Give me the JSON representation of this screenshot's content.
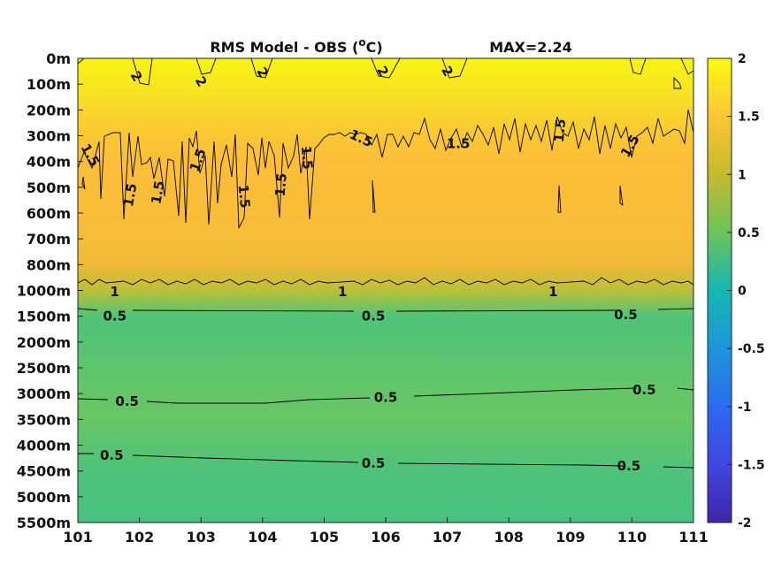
{
  "chart_data": {
    "type": "heatmap",
    "title": "RMS Model - OBS (",
    "title_unit": "C)",
    "title_super": "o",
    "max_label": "MAX=2.24",
    "xlabel": "",
    "ylabel": "",
    "x_ticks": [
      "101",
      "102",
      "103",
      "104",
      "105",
      "106",
      "107",
      "108",
      "109",
      "110",
      "111"
    ],
    "xlim": [
      101,
      111
    ],
    "y_ticks": [
      "0m",
      "100m",
      "200m",
      "300m",
      "400m",
      "500m",
      "600m",
      "700m",
      "800m",
      "1000m",
      "1500m",
      "2000m",
      "2500m",
      "3000m",
      "3500m",
      "4000m",
      "4500m",
      "5000m",
      "5500m"
    ],
    "colorbar": {
      "range": [
        -2,
        2
      ],
      "tick_values": [
        2,
        1.5,
        1,
        0.5,
        0,
        -0.5,
        -1,
        -1.5,
        -2
      ],
      "tick_labels": [
        "2",
        "1.5",
        "1",
        "0.5",
        "0",
        "-0.5",
        "-1",
        "-1.5",
        "-2"
      ],
      "colormap": "parula"
    },
    "depth_profile": [
      {
        "depth": "0m",
        "value": 1.95
      },
      {
        "depth": "100m",
        "value": 1.85
      },
      {
        "depth": "200m",
        "value": 1.72
      },
      {
        "depth": "300m",
        "value": 1.58
      },
      {
        "depth": "400m",
        "value": 1.5
      },
      {
        "depth": "500m",
        "value": 1.47
      },
      {
        "depth": "600m",
        "value": 1.46
      },
      {
        "depth": "700m",
        "value": 1.43
      },
      {
        "depth": "800m",
        "value": 1.3
      },
      {
        "depth": "1000m",
        "value": 0.95
      },
      {
        "depth": "1500m",
        "value": 0.5
      },
      {
        "depth": "2000m",
        "value": 0.52
      },
      {
        "depth": "2500m",
        "value": 0.57
      },
      {
        "depth": "3000m",
        "value": 0.6
      },
      {
        "depth": "3500m",
        "value": 0.62
      },
      {
        "depth": "4000m",
        "value": 0.55
      },
      {
        "depth": "4500m",
        "value": 0.48
      },
      {
        "depth": "5000m",
        "value": 0.45
      },
      {
        "depth": "5500m",
        "value": 0.44
      }
    ],
    "contour_labels": [
      {
        "text": "2",
        "x": 101.95,
        "depth_index": 0.7,
        "rotate": 60
      },
      {
        "text": "2",
        "x": 103.0,
        "depth_index": 0.9,
        "rotate": 60
      },
      {
        "text": "2",
        "x": 104.0,
        "depth_index": 0.55,
        "rotate": 60
      },
      {
        "text": "2",
        "x": 105.95,
        "depth_index": 0.5,
        "rotate": 60
      },
      {
        "text": "2",
        "x": 107.0,
        "depth_index": 0.5,
        "rotate": 60
      },
      {
        "text": "1.5",
        "x": 101.2,
        "depth_index": 3.75,
        "rotate": 60
      },
      {
        "text": "1.5",
        "x": 101.85,
        "depth_index": 5.3,
        "rotate": -80
      },
      {
        "text": "1.5",
        "x": 102.3,
        "depth_index": 5.2,
        "rotate": -80
      },
      {
        "text": "1.5",
        "x": 102.95,
        "depth_index": 3.95,
        "rotate": -70
      },
      {
        "text": "1.5",
        "x": 103.7,
        "depth_index": 5.35,
        "rotate": 85
      },
      {
        "text": "1.5",
        "x": 104.3,
        "depth_index": 4.9,
        "rotate": -85
      },
      {
        "text": "1.5",
        "x": 104.72,
        "depth_index": 3.85,
        "rotate": 85
      },
      {
        "text": "1.5",
        "x": 105.6,
        "depth_index": 3.1,
        "rotate": 25
      },
      {
        "text": "1.5",
        "x": 107.18,
        "depth_index": 3.3,
        "rotate": 0
      },
      {
        "text": "1.5",
        "x": 108.83,
        "depth_index": 2.8,
        "rotate": -85
      },
      {
        "text": "1.5",
        "x": 109.97,
        "depth_index": 3.4,
        "rotate": -60
      },
      {
        "text": "1",
        "x": 101.6,
        "depth_index": 9.05,
        "rotate": 0
      },
      {
        "text": "1",
        "x": 105.3,
        "depth_index": 9.05,
        "rotate": 0
      },
      {
        "text": "1",
        "x": 108.72,
        "depth_index": 9.05,
        "rotate": 0
      },
      {
        "text": "0.5",
        "x": 101.6,
        "depth_index": 10.0,
        "rotate": 0
      },
      {
        "text": "0.5",
        "x": 105.8,
        "depth_index": 10.0,
        "rotate": 0
      },
      {
        "text": "0.5",
        "x": 109.9,
        "depth_index": 9.95,
        "rotate": 0
      },
      {
        "text": "0.5",
        "x": 101.8,
        "depth_index": 13.3,
        "rotate": 0
      },
      {
        "text": "0.5",
        "x": 106.0,
        "depth_index": 13.15,
        "rotate": 0
      },
      {
        "text": "0.5",
        "x": 110.2,
        "depth_index": 12.85,
        "rotate": 0
      },
      {
        "text": "0.5",
        "x": 101.55,
        "depth_index": 15.4,
        "rotate": 0
      },
      {
        "text": "0.5",
        "x": 105.8,
        "depth_index": 15.7,
        "rotate": 0
      },
      {
        "text": "0.5",
        "x": 109.95,
        "depth_index": 15.8,
        "rotate": 0
      }
    ]
  }
}
